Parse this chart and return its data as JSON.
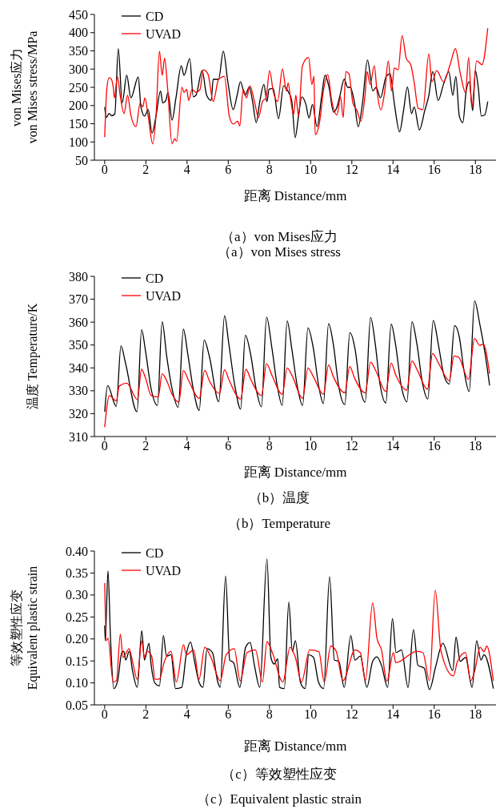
{
  "chart_data": [
    {
      "type": "line",
      "ylabel": "von Mises应力\nvon Mises stress/MPa",
      "xlabel": "距离 Distance/mm",
      "annotations": [
        "（a）von Mises应力",
        "（a）von Mises stress"
      ],
      "xlim": [
        -0.5,
        19
      ],
      "xticks": [
        0,
        2,
        4,
        6,
        8,
        10,
        12,
        14,
        16,
        18
      ],
      "ylim": [
        50,
        450
      ],
      "yticks": [
        50,
        100,
        150,
        200,
        250,
        300,
        350,
        400,
        450
      ],
      "legend": "top left",
      "grid": false,
      "series": [
        {
          "name": "CD",
          "color": "#000000",
          "x": [
            0,
            0.08,
            0.21,
            0.34,
            0.49,
            0.66,
            0.85,
            1.07,
            1.27,
            1.63,
            1.76,
            1.94,
            2.11,
            2.3,
            2.49,
            2.71,
            2.82,
            2.97,
            3.07,
            3.27,
            3.46,
            3.72,
            3.85,
            4.13,
            4.3,
            4.43,
            4.73,
            4.95,
            5.17,
            5.27,
            5.53,
            5.76,
            5.98,
            6.24,
            6.43,
            6.59,
            6.82,
            7.02,
            7.18,
            7.36,
            7.53,
            7.73,
            7.88,
            7.98,
            8.18,
            8.44,
            8.69,
            8.89,
            9.08,
            9.25,
            9.41,
            9.57,
            9.77,
            9.92,
            10.09,
            10.31,
            10.54,
            10.7,
            10.89,
            11.11,
            11.28,
            11.41,
            11.63,
            11.8,
            11.92,
            12.12,
            12.31,
            12.51,
            12.76,
            13.02,
            13.18,
            13.39,
            13.67,
            13.86,
            14.06,
            14.32,
            14.51,
            14.7,
            14.9,
            15.03,
            15.28,
            15.54,
            15.74,
            15.93,
            16.19,
            16.45,
            16.71,
            16.9,
            17.05,
            17.22,
            17.39,
            17.55,
            17.7,
            17.87,
            18,
            18.13,
            18.29,
            18.45,
            18.6
          ],
          "values": [
            196,
            167,
            178,
            172,
            177,
            356,
            207,
            283,
            221,
            278,
            196,
            171,
            189,
            124,
            171,
            240,
            207,
            214,
            236,
            160,
            221,
            309,
            283,
            329,
            224,
            228,
            296,
            228,
            214,
            272,
            272,
            349,
            265,
            189,
            228,
            265,
            228,
            251,
            211,
            153,
            211,
            258,
            211,
            245,
            247,
            164,
            254,
            240,
            214,
            112,
            171,
            224,
            203,
            166,
            203,
            142,
            228,
            283,
            251,
            182,
            196,
            224,
            272,
            250,
            250,
            211,
            142,
            203,
            325,
            240,
            250,
            221,
            280,
            287,
            207,
            128,
            186,
            251,
            178,
            196,
            133,
            186,
            228,
            293,
            214,
            258,
            293,
            228,
            280,
            171,
            153,
            240,
            265,
            186,
            296,
            254,
            171,
            174,
            211
          ]
        },
        {
          "name": "UVAD",
          "color": "#ff0000",
          "x": [
            0,
            0.1,
            0.21,
            0.3,
            0.43,
            0.47,
            0.62,
            0.75,
            0.94,
            1.11,
            1.27,
            1.52,
            1.72,
            1.85,
            1.95,
            2.11,
            2.33,
            2.49,
            2.66,
            2.79,
            2.91,
            3.05,
            3.27,
            3.4,
            3.49,
            3.75,
            3.85,
            3.98,
            4.08,
            4.24,
            4.43,
            4.63,
            4.78,
            5.01,
            5.27,
            5.53,
            5.81,
            6.05,
            6.24,
            6.46,
            6.56,
            6.72,
            6.89,
            7.05,
            7.27,
            7.47,
            7.66,
            7.83,
            8.01,
            8.18,
            8.4,
            8.63,
            8.82,
            8.91,
            9.02,
            9.17,
            9.28,
            9.41,
            9.6,
            9.9,
            10.06,
            10.16,
            10.22,
            10.44,
            10.63,
            10.83,
            11.02,
            11.28,
            11.45,
            11.58,
            11.71,
            11.86,
            12.05,
            12.25,
            12.44,
            12.64,
            12.74,
            12.89,
            13.09,
            13.22,
            13.41,
            13.6,
            13.77,
            13.93,
            14.06,
            14.25,
            14.44,
            14.64,
            14.86,
            15.03,
            15.22,
            15.45,
            15.74,
            15.89,
            16.12,
            16.45,
            16.77,
            17.03,
            17.26,
            17.52,
            17.67,
            17.83,
            18.06,
            18.32,
            18.6
          ],
          "values": [
            113,
            244,
            276,
            274,
            244,
            221,
            280,
            228,
            178,
            228,
            174,
            142,
            207,
            196,
            221,
            171,
            95,
            171,
            349,
            283,
            330,
            251,
            95,
            109,
            102,
            250,
            236,
            244,
            214,
            245,
            236,
            244,
            298,
            287,
            211,
            272,
            280,
            171,
            149,
            157,
            144,
            244,
            221,
            254,
            211,
            167,
            211,
            221,
            296,
            240,
            211,
            301,
            240,
            262,
            221,
            174,
            228,
            171,
            309,
            332,
            258,
            280,
            120,
            157,
            244,
            285,
            214,
            174,
            224,
            167,
            293,
            287,
            207,
            186,
            157,
            228,
            293,
            258,
            309,
            240,
            188,
            240,
            322,
            240,
            303,
            298,
            392,
            330,
            312,
            262,
            193,
            189,
            342,
            265,
            296,
            265,
            312,
            356,
            290,
            236,
            332,
            196,
            323,
            312,
            412
          ]
        }
      ]
    },
    {
      "type": "line",
      "ylabel": "温度 Temperature/K",
      "xlabel": "距离 Distance/mm",
      "annotations": [
        "（b）温度",
        "（b）Temperature"
      ],
      "xlim": [
        -0.5,
        19
      ],
      "xticks": [
        0,
        2,
        4,
        6,
        8,
        10,
        12,
        14,
        16,
        18
      ],
      "ylim": [
        310,
        380
      ],
      "yticks": [
        310,
        320,
        330,
        340,
        350,
        360,
        370,
        380
      ],
      "legend": "top left",
      "grid": false,
      "series": [
        {
          "name": "CD",
          "color": "#000000",
          "x": [
            0,
            0.14,
            0.56,
            0.79,
            1.01,
            1.57,
            1.79,
            1.98,
            2.24,
            2.56,
            2.79,
            3.01,
            3.27,
            3.57,
            3.82,
            4.05,
            4.31,
            4.59,
            4.83,
            5.08,
            5.54,
            5.82,
            6.02,
            6.31,
            6.6,
            6.83,
            7.09,
            7.35,
            7.61,
            7.86,
            8.12,
            8.38,
            8.62,
            8.86,
            9.09,
            9.35,
            9.61,
            9.87,
            10.13,
            10.39,
            10.62,
            10.87,
            11.1,
            11.36,
            11.66,
            11.9,
            12.17,
            12.39,
            12.65,
            12.91,
            13.13,
            13.36,
            13.65,
            13.91,
            14.11,
            14.4,
            14.68,
            14.92,
            15.15,
            15.43,
            15.69,
            15.95,
            16.21,
            16.47,
            16.73,
            16.99,
            17.22,
            17.44,
            17.7,
            17.96,
            18.21,
            18.47,
            18.69
          ],
          "values": [
            320.8,
            332.3,
            323.2,
            349.6,
            342.1,
            320.8,
            356.7,
            347.5,
            331.5,
            323.6,
            360.2,
            345.1,
            330.9,
            322.8,
            356.9,
            345.1,
            330.3,
            321.4,
            352.2,
            345.1,
            325.2,
            362.8,
            351,
            332.7,
            322,
            354.2,
            345.7,
            330.9,
            323,
            362.2,
            348.6,
            332.1,
            323.6,
            360.5,
            348,
            332.1,
            323.6,
            357.5,
            348.6,
            332.1,
            324.4,
            359.3,
            350.4,
            332.1,
            324,
            355.4,
            347.5,
            332.1,
            325,
            362,
            351,
            333.3,
            324.7,
            359.1,
            351,
            332.1,
            325.2,
            360.2,
            351,
            333.3,
            326.4,
            360.7,
            349.8,
            336.8,
            332.9,
            358.5,
            353.4,
            339.2,
            329.7,
            369.3,
            359.3,
            346.3,
            332.3
          ]
        },
        {
          "name": "UVAD",
          "color": "#ff0000",
          "x": [
            0,
            0.23,
            0.56,
            0.71,
            1.07,
            1.59,
            1.79,
            1.98,
            2.26,
            2.6,
            2.79,
            3.01,
            3.27,
            3.6,
            3.82,
            4.08,
            4.59,
            4.86,
            5.08,
            5.58,
            5.82,
            6.05,
            6.6,
            6.86,
            7.09,
            7.61,
            7.86,
            8.12,
            8.62,
            8.86,
            9.09,
            9.61,
            9.87,
            10.13,
            10.62,
            10.87,
            11.1,
            11.66,
            11.9,
            12.13,
            12.65,
            12.91,
            13.17,
            13.65,
            13.91,
            14.14,
            14.66,
            14.92,
            15.17,
            15.67,
            15.92,
            16.21,
            16.73,
            16.96,
            17.18,
            17.66,
            17.96,
            18.21,
            18.38,
            18.69
          ],
          "values": [
            314.1,
            327.9,
            325.6,
            332.1,
            333.3,
            326.2,
            339.4,
            335.6,
            327.9,
            327.3,
            337.4,
            334.4,
            328.5,
            325,
            338.8,
            334.4,
            326.7,
            338.9,
            334.4,
            328.8,
            339.2,
            334.4,
            326.4,
            339.4,
            335,
            327.9,
            341.8,
            336.8,
            328.5,
            340,
            336.8,
            326.7,
            340,
            336.2,
            328.5,
            341.3,
            336.2,
            329.1,
            340.6,
            335.6,
            329.1,
            342.5,
            338.6,
            329.7,
            342.1,
            336.8,
            330.3,
            343,
            339.2,
            330.7,
            346.3,
            342.1,
            334.4,
            345.1,
            344.7,
            335,
            352.8,
            349.8,
            350.4,
            337.4
          ]
        }
      ]
    },
    {
      "type": "line",
      "ylabel": "等效塑性应变\nEquivalent plastic strain",
      "xlabel": "距离 Distance/mm",
      "annotations": [
        "（c）等效塑性应变",
        "（c）Equivalent plastic strain"
      ],
      "xlim": [
        -0.5,
        19
      ],
      "xticks": [
        0,
        2,
        4,
        6,
        8,
        10,
        12,
        14,
        16,
        18
      ],
      "ylim": [
        0.05,
        0.4
      ],
      "yticks": [
        {
          "value": 0.05,
          "label": "0.05"
        },
        {
          "value": 0.1,
          "label": "0.10"
        },
        {
          "value": 0.15,
          "label": "0.15"
        },
        {
          "value": 0.2,
          "label": "0.20"
        },
        {
          "value": 0.25,
          "label": "0.25"
        },
        {
          "value": 0.3,
          "label": "0.30"
        },
        {
          "value": 0.35,
          "label": "0.35"
        },
        {
          "value": 0.4,
          "label": "0.40"
        }
      ],
      "legend": "top left",
      "grid": false,
      "series": [
        {
          "name": "CD",
          "color": "#000000",
          "x": [
            0,
            0.03,
            0.16,
            0.28,
            0.44,
            0.63,
            0.83,
            0.93,
            1.02,
            1.19,
            1.35,
            1.58,
            1.8,
            1.93,
            2.15,
            2.25,
            2.45,
            2.66,
            2.85,
            3,
            3.22,
            3.44,
            3.74,
            3.96,
            4.17,
            4.35,
            4.58,
            4.77,
            4.97,
            5.23,
            5.49,
            5.61,
            5.87,
            6.07,
            6.26,
            6.56,
            6.84,
            7.06,
            7.27,
            7.53,
            7.88,
            8.07,
            8.23,
            8.4,
            8.49,
            8.72,
            8.94,
            9.11,
            9.26,
            9.5,
            9.73,
            9.91,
            10.14,
            10.38,
            10.63,
            10.92,
            11.15,
            11.37,
            11.63,
            11.95,
            12.15,
            12.41,
            12.73,
            13.01,
            13.22,
            13.44,
            13.74,
            13.97,
            14.15,
            14.41,
            14.73,
            14.99,
            15.21,
            15.51,
            15.77,
            16.07,
            16.42,
            16.9,
            17.06,
            17.26,
            17.52,
            17.84,
            18.06,
            18.27,
            18.42,
            18.87
          ],
          "values": [
            0.231,
            0.196,
            0.355,
            0.205,
            0.087,
            0.105,
            0.169,
            0.172,
            0.152,
            0.172,
            0.128,
            0.09,
            0.219,
            0.152,
            0.19,
            0.143,
            0.099,
            0.093,
            0.208,
            0.161,
            0.164,
            0.087,
            0.09,
            0.164,
            0.193,
            0.152,
            0.102,
            0.09,
            0.178,
            0.169,
            0.102,
            0.09,
            0.343,
            0.152,
            0.146,
            0.09,
            0.181,
            0.192,
            0.14,
            0.09,
            0.382,
            0.158,
            0.143,
            0.155,
            0.09,
            0.087,
            0.284,
            0.172,
            0.196,
            0.102,
            0.087,
            0.164,
            0.158,
            0.102,
            0.087,
            0.342,
            0.152,
            0.149,
            0.09,
            0.208,
            0.152,
            0.161,
            0.09,
            0.149,
            0.159,
            0.14,
            0.09,
            0.246,
            0.169,
            0.175,
            0.09,
            0.221,
            0.14,
            0.134,
            0.085,
            0.137,
            0.19,
            0.128,
            0.204,
            0.149,
            0.158,
            0.09,
            0.196,
            0.152,
            0.164,
            0.087
          ]
        },
        {
          "name": "UVAD",
          "color": "#ff0000",
          "x": [
            0,
            0.08,
            0.16,
            0.41,
            0.57,
            0.76,
            0.89,
            1.19,
            1.35,
            1.58,
            1.8,
            1.93,
            2.06,
            2.28,
            2.45,
            2.66,
            2.9,
            3.22,
            3.48,
            3.83,
            3.96,
            4.32,
            4.58,
            4.86,
            5.16,
            5.61,
            5.9,
            6.29,
            6.58,
            6.91,
            7.32,
            7.66,
            7.88,
            8.14,
            8.65,
            9,
            9.26,
            9.56,
            9.95,
            10.4,
            10.66,
            10.98,
            11.24,
            11.57,
            12.15,
            12.41,
            12.66,
            13.01,
            13.22,
            13.44,
            13.7,
            14.02,
            14.13,
            15.16,
            15.45,
            15.77,
            16.05,
            16.33,
            16.93,
            17.13,
            17.52,
            17.77,
            17.97,
            18.23,
            18.42,
            18.55,
            18.87
          ],
          "values": [
            0.327,
            0.196,
            0.202,
            0.102,
            0.105,
            0.211,
            0.158,
            0.178,
            0.149,
            0.108,
            0.196,
            0.158,
            0.172,
            0.161,
            0.108,
            0.109,
            0.149,
            0.172,
            0.102,
            0.187,
            0.164,
            0.175,
            0.108,
            0.181,
            0.158,
            0.105,
            0.164,
            0.178,
            0.105,
            0.169,
            0.175,
            0.102,
            0.194,
            0.169,
            0.102,
            0.181,
            0.158,
            0.102,
            0.175,
            0.171,
            0.102,
            0.184,
            0.172,
            0.105,
            0.175,
            0.169,
            0.105,
            0.282,
            0.202,
            0.175,
            0.104,
            0.169,
            0.146,
            0.172,
            0.169,
            0.105,
            0.311,
            0.172,
            0.116,
            0.149,
            0.169,
            0.105,
            0.128,
            0.181,
            0.171,
            0.184,
            0.105
          ]
        }
      ]
    }
  ]
}
